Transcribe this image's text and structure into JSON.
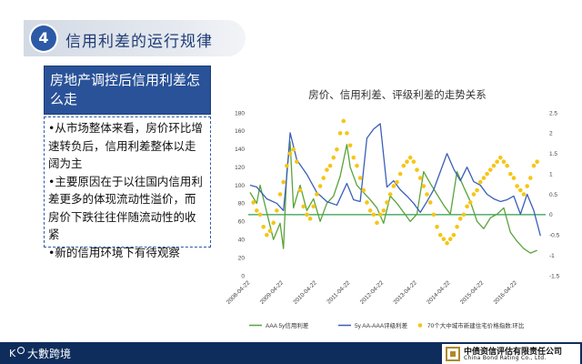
{
  "header": {
    "number": "4",
    "title": "信用利差的运行规律"
  },
  "left_panel": {
    "title": "房地产调控后信用利差怎么走",
    "bullets": [
      "•从市场整体来看，房价环比增速转负后，信用利差整体以走阔为主",
      "•主要原因在于以往国内信用利差更多的体现流动性溢价，而房价下跌往往伴随流动性的收紧",
      "•新的信用环境下有待观察"
    ]
  },
  "footer": {
    "left_logo_text": "大數跨境",
    "right_logo_cn": "中债资信评估有限责任公司",
    "right_logo_en": "China Bond Rating Co., Ltd."
  },
  "colors": {
    "aaa": "#5aa33a",
    "aa": "#3b5fb8",
    "house": "#f5c518",
    "zero": "#2e9e4d"
  },
  "chart_data": {
    "type": "line",
    "title": "房价、信用利差、评级利差的走势关系",
    "x_ticks": [
      "2008-04-22",
      "2009-04-22",
      "2010-04-22",
      "2011-04-22",
      "2012-04-22",
      "2013-04-22",
      "2014-04-22",
      "2015-04-22",
      "2016-04-22"
    ],
    "y_left": {
      "lim": [
        0,
        180
      ],
      "ticks": [
        0,
        20,
        40,
        60,
        80,
        100,
        120,
        140,
        160,
        180
      ]
    },
    "y_right": {
      "lim": [
        -1.5,
        2.5
      ],
      "ticks": [
        "-1.5",
        "-1",
        "-0.5",
        "0",
        "0.5",
        "1",
        "1.5",
        "2",
        "2.5"
      ]
    },
    "reference_line_right": 0,
    "series": [
      {
        "name": "AAA 5y信用利差",
        "axis": "left",
        "style": "line",
        "x": [
          0,
          0.2,
          0.3,
          0.5,
          0.7,
          0.9,
          1.0,
          1.1,
          1.2,
          1.3,
          1.5,
          1.7,
          1.9,
          2.1,
          2.3,
          2.5,
          2.7,
          2.9,
          3.0,
          3.2,
          3.4,
          3.6,
          3.8,
          4.0,
          4.2,
          4.4,
          4.6,
          4.8,
          5.0,
          5.2,
          5.4,
          5.6,
          5.8,
          6.0,
          6.2,
          6.4,
          6.6,
          6.8,
          7.0,
          7.2,
          7.4,
          7.6,
          7.8,
          8.0,
          8.2,
          8.4,
          8.6
        ],
        "values": [
          92,
          80,
          100,
          70,
          40,
          58,
          30,
          115,
          148,
          75,
          100,
          72,
          85,
          60,
          80,
          88,
          110,
          145,
          120,
          100,
          92,
          84,
          75,
          58,
          88,
          80,
          70,
          60,
          68,
          115,
          102,
          90,
          78,
          68,
          115,
          98,
          82,
          60,
          52,
          64,
          68,
          75,
          48,
          38,
          30,
          25,
          28
        ]
      },
      {
        "name": "5y AA-AAA评级利差",
        "axis": "left",
        "style": "line",
        "x": [
          0,
          0.2,
          0.5,
          0.8,
          1.0,
          1.1,
          1.2,
          1.4,
          1.7,
          2.0,
          2.3,
          2.6,
          2.9,
          3.1,
          3.3,
          3.5,
          3.7,
          3.9,
          4.1,
          4.3,
          4.5,
          4.7,
          4.9,
          5.1,
          5.3,
          5.5,
          5.7,
          5.9,
          6.1,
          6.3,
          6.5,
          6.7,
          6.9,
          7.1,
          7.3,
          7.5,
          7.7,
          7.9,
          8.1,
          8.3,
          8.5,
          8.7
        ],
        "values": [
          100,
          98,
          85,
          80,
          72,
          110,
          158,
          128,
          112,
          92,
          82,
          78,
          102,
          84,
          82,
          152,
          162,
          168,
          98,
          105,
          95,
          88,
          80,
          70,
          82,
          95,
          115,
          135,
          118,
          105,
          120,
          104,
          100,
          90,
          85,
          82,
          84,
          88,
          68,
          90,
          72,
          44
        ]
      },
      {
        "name": "70个大中城市新建住宅价格指数:环比",
        "axis": "right",
        "style": "dots",
        "x": [
          0.1,
          0.2,
          0.3,
          0.4,
          0.5,
          0.6,
          0.7,
          0.8,
          0.9,
          1.0,
          1.1,
          1.2,
          1.3,
          1.4,
          1.5,
          1.6,
          1.7,
          1.8,
          1.9,
          2.0,
          2.1,
          2.2,
          2.3,
          2.4,
          2.5,
          2.6,
          2.7,
          2.8,
          2.9,
          3.0,
          3.1,
          3.2,
          3.3,
          3.4,
          3.5,
          3.6,
          3.7,
          3.8,
          3.9,
          4.0,
          4.1,
          4.2,
          4.3,
          4.4,
          4.5,
          4.6,
          4.7,
          4.8,
          4.9,
          5.0,
          5.1,
          5.2,
          5.3,
          5.4,
          5.5,
          5.6,
          5.7,
          5.8,
          5.9,
          6.0,
          6.1,
          6.2,
          6.3,
          6.4,
          6.5,
          6.6,
          6.7,
          6.8,
          6.9,
          7.0,
          7.1,
          7.2,
          7.3,
          7.4,
          7.5,
          7.6,
          7.7,
          7.8,
          7.9,
          8.0,
          8.1,
          8.2,
          8.3,
          8.4,
          8.5,
          8.6
        ],
        "values": [
          0.3,
          0.1,
          0.0,
          -0.3,
          -0.5,
          -0.4,
          -0.2,
          0.1,
          0.5,
          0.8,
          1.2,
          1.5,
          1.6,
          1.3,
          0.6,
          0.2,
          0.0,
          -0.1,
          0.2,
          0.5,
          0.7,
          0.9,
          1.1,
          1.2,
          1.4,
          1.6,
          2.0,
          2.3,
          2.0,
          1.7,
          1.4,
          1.2,
          0.9,
          0.6,
          0.3,
          0.1,
          0.0,
          -0.2,
          0.0,
          0.1,
          0.3,
          0.5,
          0.7,
          0.8,
          1.0,
          1.2,
          1.3,
          1.4,
          1.3,
          1.1,
          0.9,
          0.7,
          0.5,
          0.3,
          0.0,
          -0.3,
          -0.5,
          -0.6,
          -0.7,
          -0.6,
          -0.5,
          -0.3,
          -0.1,
          0.0,
          0.2,
          0.3,
          0.5,
          0.6,
          0.8,
          0.9,
          1.0,
          1.1,
          1.2,
          1.3,
          1.4,
          1.3,
          1.2,
          1.0,
          0.9,
          0.7,
          0.6,
          0.5,
          0.7,
          0.9,
          1.2,
          1.3
        ]
      }
    ],
    "legend_placement": "bottom"
  }
}
